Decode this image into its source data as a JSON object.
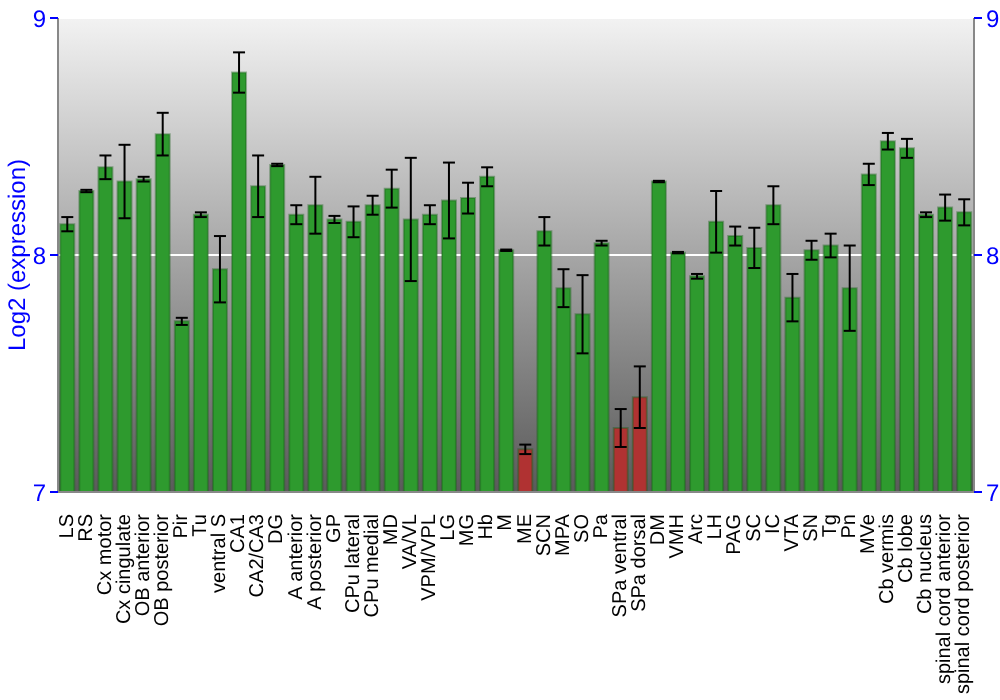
{
  "chart_data": {
    "type": "bar",
    "ylabel": "Log2 (expression)",
    "categories": [
      "LS",
      "RS",
      "Cx motor",
      "Cx cingulate",
      "OB anterior",
      "OB posterior",
      "Pir",
      "Tu",
      "ventral S",
      "CA1",
      "CA2/CA3",
      "DG",
      "A anterior",
      "A posterior",
      "GP",
      "CPu lateral",
      "CPu medial",
      "MD",
      "VA/VL",
      "VPM/VPL",
      "LG",
      "MG",
      "Hb",
      "M",
      "ME",
      "SCN",
      "MPA",
      "SO",
      "Pa",
      "SPa ventral",
      "SPa dorsal",
      "DM",
      "VMH",
      "Arc",
      "LH",
      "PAG",
      "SC",
      "IC",
      "VTA",
      "SN",
      "Tg",
      "Pn",
      "MVe",
      "Cb vermis",
      "Cb lobe",
      "Cb nucleus",
      "spinal cord anterior",
      "spinal cord posterior"
    ],
    "values": [
      8.13,
      8.27,
      8.37,
      8.31,
      8.32,
      8.51,
      7.72,
      8.17,
      7.94,
      8.77,
      8.29,
      8.38,
      8.17,
      8.21,
      8.15,
      8.14,
      8.21,
      8.28,
      8.15,
      8.17,
      8.23,
      8.24,
      8.33,
      8.02,
      7.18,
      8.1,
      7.86,
      7.75,
      8.05,
      7.27,
      7.4,
      8.31,
      8.01,
      7.91,
      8.14,
      8.08,
      8.03,
      8.21,
      7.82,
      8.02,
      8.04,
      7.86,
      8.34,
      8.48,
      8.45,
      8.17,
      8.2,
      8.18
    ],
    "errors": [
      0.03,
      0.005,
      0.05,
      0.155,
      0.01,
      0.09,
      0.015,
      0.01,
      0.14,
      0.085,
      0.13,
      0.005,
      0.04,
      0.12,
      0.015,
      0.065,
      0.04,
      0.08,
      0.26,
      0.04,
      0.16,
      0.065,
      0.04,
      0.003,
      0.02,
      0.06,
      0.08,
      0.165,
      0.01,
      0.08,
      0.13,
      0.003,
      0.003,
      0.01,
      0.13,
      0.04,
      0.085,
      0.08,
      0.1,
      0.04,
      0.05,
      0.18,
      0.045,
      0.035,
      0.04,
      0.01,
      0.055,
      0.055
    ],
    "colors": [
      "#2e9a2e",
      "#2e9a2e",
      "#2e9a2e",
      "#2e9a2e",
      "#2e9a2e",
      "#2e9a2e",
      "#2e9a2e",
      "#2e9a2e",
      "#2e9a2e",
      "#2e9a2e",
      "#2e9a2e",
      "#2e9a2e",
      "#2e9a2e",
      "#2e9a2e",
      "#2e9a2e",
      "#2e9a2e",
      "#2e9a2e",
      "#2e9a2e",
      "#2e9a2e",
      "#2e9a2e",
      "#2e9a2e",
      "#2e9a2e",
      "#2e9a2e",
      "#2e9a2e",
      "#b03232",
      "#2e9a2e",
      "#2e9a2e",
      "#2e9a2e",
      "#2e9a2e",
      "#b03232",
      "#b03232",
      "#2e9a2e",
      "#2e9a2e",
      "#2e9a2e",
      "#2e9a2e",
      "#2e9a2e",
      "#2e9a2e",
      "#2e9a2e",
      "#2e9a2e",
      "#2e9a2e",
      "#2e9a2e",
      "#2e9a2e",
      "#2e9a2e",
      "#2e9a2e",
      "#2e9a2e",
      "#2e9a2e",
      "#2e9a2e",
      "#2e9a2e"
    ],
    "ylim": [
      7,
      9
    ],
    "yticks": [
      7,
      8,
      9
    ],
    "y2lim": [
      7,
      9
    ],
    "y2ticks": [
      7,
      8,
      9
    ],
    "grid": "y"
  }
}
